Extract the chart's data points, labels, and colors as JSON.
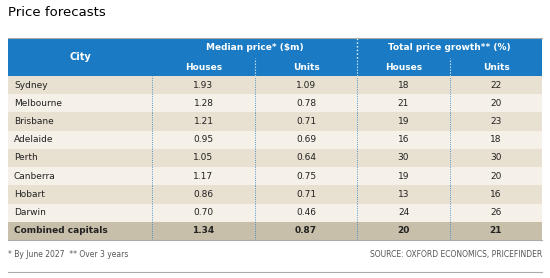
{
  "title": "Price forecasts",
  "footnote_left": "* By June 2027  ** Over 3 years",
  "footnote_right": "SOURCE: OXFORD ECONOMICS, PRICEFINDER",
  "header1_left": "Median price* ($m)",
  "header1_right": "Total price growth** (%)",
  "header2": [
    "Houses",
    "Units",
    "Houses",
    "Units"
  ],
  "col_city": "City",
  "cities": [
    "Sydney",
    "Melbourne",
    "Brisbane",
    "Adelaide",
    "Perth",
    "Canberra",
    "Hobart",
    "Darwin",
    "Combined capitals"
  ],
  "median_houses": [
    1.93,
    1.28,
    1.21,
    0.95,
    1.05,
    1.17,
    0.86,
    0.7,
    1.34
  ],
  "median_units": [
    1.09,
    0.78,
    0.71,
    0.69,
    0.64,
    0.75,
    0.71,
    0.46,
    0.87
  ],
  "growth_houses": [
    18,
    21,
    19,
    16,
    30,
    19,
    13,
    24,
    20
  ],
  "growth_units": [
    22,
    20,
    23,
    18,
    30,
    20,
    16,
    26,
    21
  ],
  "color_header_bg": "#1a7bc4",
  "color_header_text": "#ffffff",
  "color_row_odd": "#e8e0d0",
  "color_row_even": "#f5f0e8",
  "color_last_row": "#c8bfaa",
  "color_title": "#000000",
  "color_footnote": "#555555",
  "color_divider_data": "#1a7bc4",
  "color_divider_header": "#ffffff",
  "bg_color": "#ffffff",
  "color_border": "#aaaaaa"
}
